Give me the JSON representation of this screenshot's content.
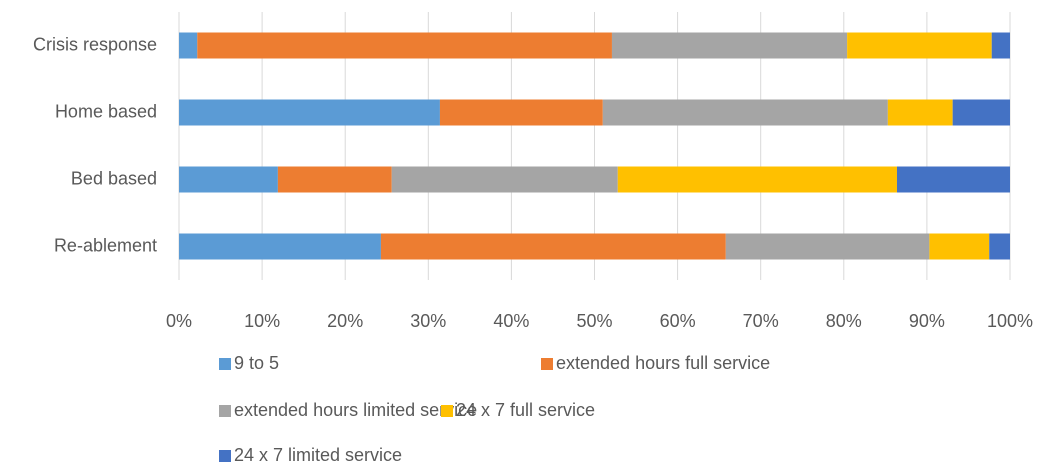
{
  "chart_data": {
    "type": "stacked_bar_horizontal",
    "categories": [
      "Crisis response",
      "Home based",
      "Bed based",
      "Re-ablement"
    ],
    "series": [
      {
        "name": "9 to 5",
        "color": "#5b9bd5",
        "values": [
          2.2,
          31.4,
          11.9,
          24.3
        ]
      },
      {
        "name": "extended hours full service",
        "color": "#ed7d31",
        "values": [
          49.9,
          19.6,
          13.7,
          41.5
        ]
      },
      {
        "name": "extended hours limited service",
        "color": "#a5a5a5",
        "values": [
          28.3,
          34.3,
          27.2,
          24.5
        ]
      },
      {
        "name": "24 x 7 full service",
        "color": "#ffc000",
        "values": [
          17.4,
          7.8,
          33.6,
          7.2
        ]
      },
      {
        "name": "24 x 7 limited service",
        "color": "#4472c4",
        "values": [
          2.2,
          6.9,
          13.6,
          2.5
        ]
      }
    ],
    "xlim": [
      0,
      100
    ],
    "xticks": [
      {
        "value": 0,
        "label": "0%"
      },
      {
        "value": 10,
        "label": "10%"
      },
      {
        "value": 20,
        "label": "20%"
      },
      {
        "value": 30,
        "label": "30%"
      },
      {
        "value": 40,
        "label": "40%"
      },
      {
        "value": 50,
        "label": "50%"
      },
      {
        "value": 60,
        "label": "60%"
      },
      {
        "value": 70,
        "label": "70%"
      },
      {
        "value": 80,
        "label": "80%"
      },
      {
        "value": 90,
        "label": "90%"
      },
      {
        "value": 100,
        "label": "100%"
      }
    ],
    "grid": true,
    "legend": "bottom"
  }
}
